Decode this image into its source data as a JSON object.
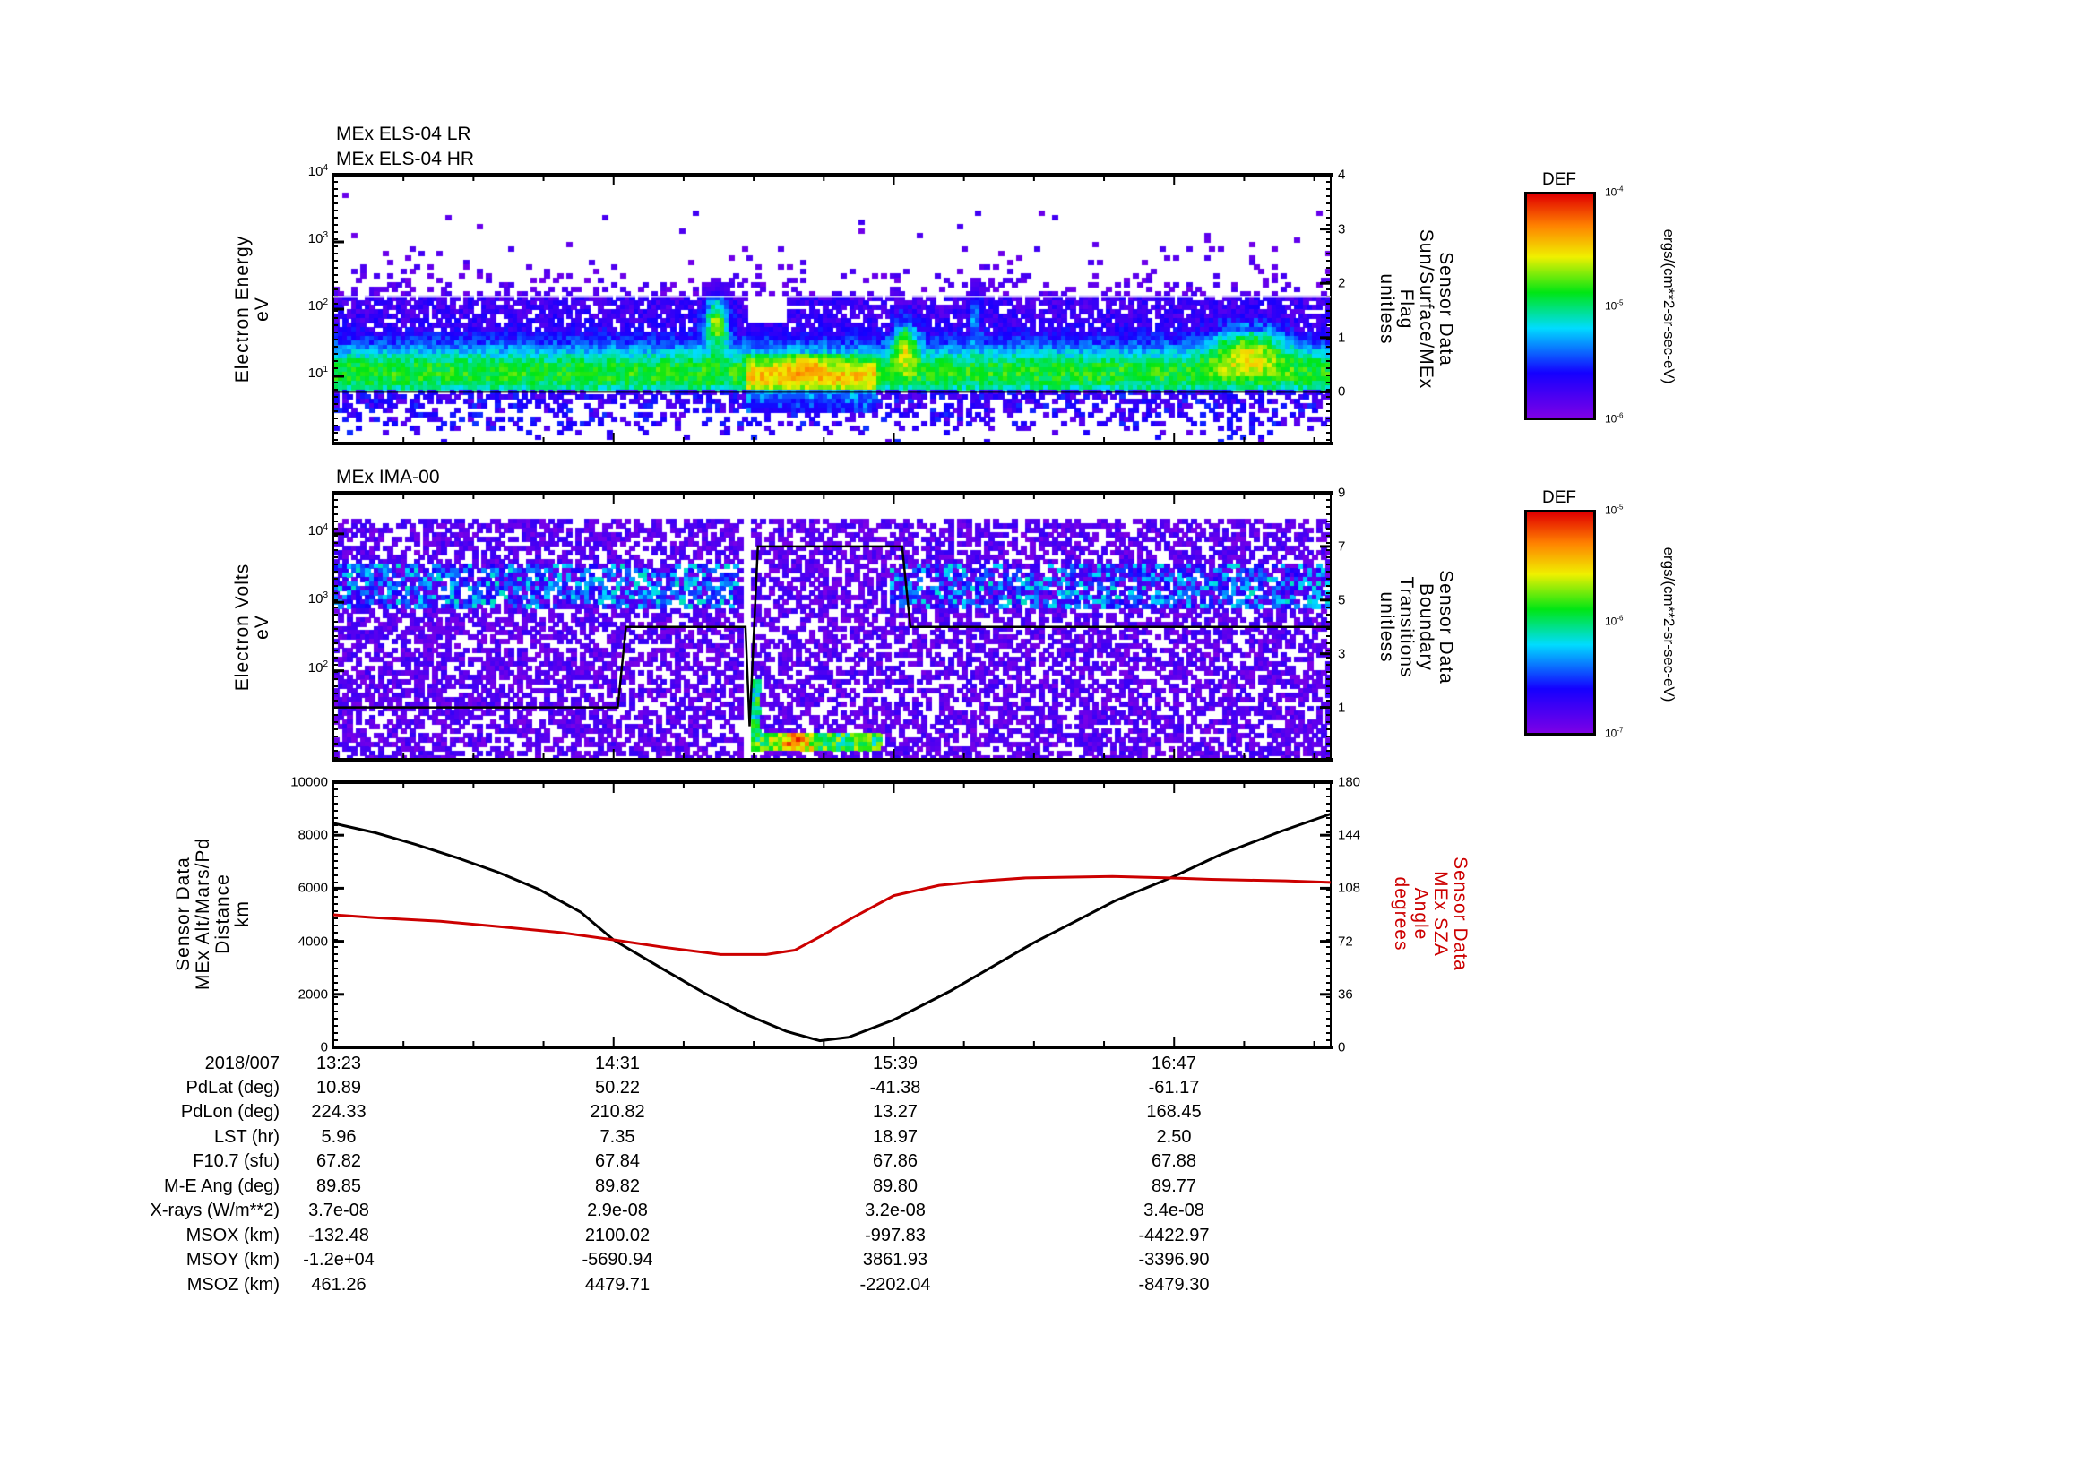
{
  "chart_data": [
    {
      "type": "heatmap",
      "titles": [
        "MEx ELS-04 LR",
        "MEx ELS-04 HR"
      ],
      "ylabel": [
        "Electron Energy",
        "eV"
      ],
      "yscale": "log",
      "ylim_log10": [
        0,
        4
      ],
      "yticks": [
        {
          "base": "10",
          "exp": "4",
          "v": 4
        },
        {
          "base": "10",
          "exp": "3",
          "v": 3
        },
        {
          "base": "10",
          "exp": "2",
          "v": 2
        },
        {
          "base": "10",
          "exp": "1",
          "v": 1
        }
      ],
      "y2label": [
        "Sensor Data",
        "Sun/Surface/MEx",
        "Flag",
        "unitless"
      ],
      "y2lim": [
        -0.95,
        4
      ],
      "y2ticks": [
        "0",
        "1",
        "2",
        "3",
        "4"
      ],
      "flag_line_value": 0,
      "white_line_value": 1.75,
      "events_minutes_from_start": [
        {
          "t": 93,
          "width": 3,
          "log_energy": 1.8,
          "strength": 0.55
        },
        {
          "t": 139,
          "width": 3,
          "log_energy": 1.5,
          "strength": 0.4
        },
        {
          "t": 156,
          "width": 1.5,
          "log_energy": 1.9,
          "strength": 0.25
        },
        {
          "t": 222,
          "width": 9,
          "log_energy": 1.45,
          "strength": 0.35
        }
      ],
      "colorbar": {
        "title": "DEF",
        "ticks": [
          {
            "base": "10",
            "exp": "-4"
          },
          {
            "base": "10",
            "exp": "-5"
          },
          {
            "base": "10",
            "exp": "-6"
          }
        ],
        "unit": "ergs/(cm**2-sr-sec-eV)"
      }
    },
    {
      "type": "heatmap",
      "titles": [
        "MEx IMA-00"
      ],
      "ylabel": [
        "Electron Volts",
        "eV"
      ],
      "yscale": "log",
      "ylim_log10": [
        0.7,
        4.6
      ],
      "yticks": [
        {
          "base": "10",
          "exp": "4",
          "v": 4
        },
        {
          "base": "10",
          "exp": "3",
          "v": 3
        },
        {
          "base": "10",
          "exp": "2",
          "v": 2
        }
      ],
      "y2label": [
        "Sensor Data",
        "Boundary",
        "Transitions",
        "unitless"
      ],
      "y2lim": [
        -0.95,
        9
      ],
      "y2ticks": [
        "1",
        "3",
        "5",
        "7",
        "9"
      ],
      "boundary_line": [
        [
          0,
          1
        ],
        [
          69,
          1
        ],
        [
          71,
          4
        ],
        [
          100,
          4
        ],
        [
          101,
          0.3
        ],
        [
          103,
          7
        ],
        [
          138,
          7
        ],
        [
          140,
          4
        ],
        [
          242,
          4
        ]
      ],
      "data_gap_minutes": [
        99,
        101
      ],
      "colorbar": {
        "title": "DEF",
        "ticks": [
          {
            "base": "10",
            "exp": "-5"
          },
          {
            "base": "10",
            "exp": "-6"
          },
          {
            "base": "10",
            "exp": "-7"
          }
        ],
        "unit": "ergs/(cm**2-sr-sec-eV)"
      }
    },
    {
      "type": "line",
      "ylabel": [
        "Sensor Data",
        "MEx Alt/Mars/Pd",
        "Distance",
        "km"
      ],
      "ylim": [
        0,
        10000
      ],
      "yticks": [
        "0",
        "2000",
        "4000",
        "6000",
        "8000",
        "10000"
      ],
      "y2label": [
        "Sensor Data",
        "MEx SZA",
        "Angle",
        "degrees"
      ],
      "y2lim": [
        0,
        180
      ],
      "y2ticks": [
        "0",
        "36",
        "72",
        "108",
        "144",
        "180"
      ],
      "x_minutes_range": [
        0,
        242
      ],
      "series": [
        {
          "name": "MEx Alt/Mars/Pd Distance (km)",
          "color": "#000000",
          "axis": "left",
          "x": [
            0,
            10,
            20,
            30,
            40,
            50,
            60,
            68,
            80,
            90,
            100,
            110,
            118,
            125,
            136,
            150,
            160,
            170,
            180,
            190,
            204,
            215,
            230,
            242
          ],
          "y": [
            8450,
            8100,
            7650,
            7150,
            6600,
            5950,
            5100,
            4050,
            2950,
            2050,
            1250,
            600,
            250,
            380,
            1040,
            2150,
            3050,
            3950,
            4750,
            5550,
            6450,
            7250,
            8150,
            8800
          ]
        },
        {
          "name": "MEx SZA Angle (degrees)",
          "color": "#cc0000",
          "axis": "right",
          "x": [
            0,
            10,
            26,
            40,
            55,
            68,
            80,
            94,
            105,
            112,
            118,
            126,
            136,
            147,
            158,
            168,
            189,
            203,
            213,
            231,
            242
          ],
          "y": [
            90,
            88,
            85.6,
            82,
            78,
            73,
            68,
            63,
            63,
            66,
            75,
            88,
            103,
            110,
            113,
            115,
            116,
            115,
            114,
            113,
            112
          ]
        }
      ]
    }
  ],
  "time_axis": {
    "date": "2018/007",
    "ticks": [
      "13:23",
      "14:31",
      "15:39",
      "16:47"
    ]
  },
  "ephemeris": [
    {
      "label": "PdLat (deg)",
      "values": [
        "10.89",
        "50.22",
        "-41.38",
        "-61.17"
      ]
    },
    {
      "label": "PdLon (deg)",
      "values": [
        "224.33",
        "210.82",
        "13.27",
        "168.45"
      ]
    },
    {
      "label": "LST (hr)",
      "values": [
        "5.96",
        "7.35",
        "18.97",
        "2.50"
      ]
    },
    {
      "label": "F10.7 (sfu)",
      "values": [
        "67.82",
        "67.84",
        "67.86",
        "67.88"
      ]
    },
    {
      "label": "M-E Ang (deg)",
      "values": [
        "89.85",
        "89.82",
        "89.80",
        "89.77"
      ]
    },
    {
      "label": "X-rays (W/m**2)",
      "values": [
        "3.7e-08",
        "2.9e-08",
        "3.2e-08",
        "3.4e-08"
      ]
    },
    {
      "label": "MSOX (km)",
      "values": [
        "-132.48",
        "2100.02",
        "-997.83",
        "-4422.97"
      ]
    },
    {
      "label": "MSOY (km)",
      "values": [
        "-1.2e+04",
        "-5690.94",
        "3861.93",
        "-3396.90"
      ]
    },
    {
      "label": "MSOZ (km)",
      "values": [
        "461.26",
        "4479.71",
        "-2202.04",
        "-8479.30"
      ]
    }
  ],
  "colors": {
    "sza": "#cc0000",
    "axis": "#000000"
  }
}
